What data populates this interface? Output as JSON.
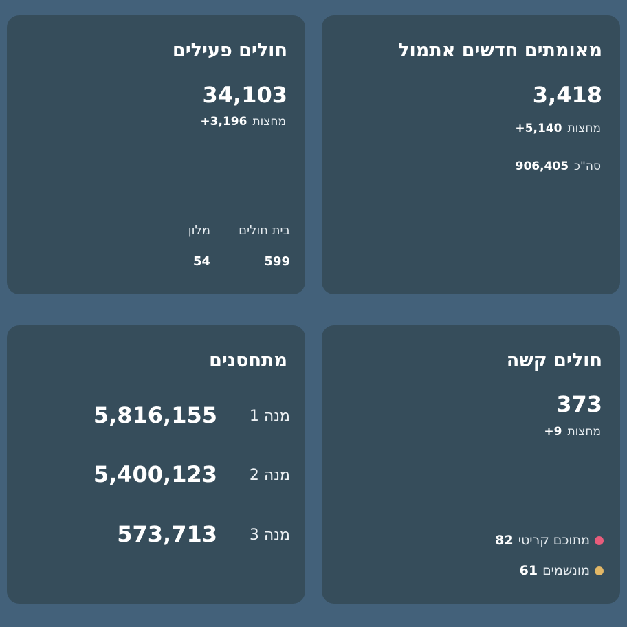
{
  "colors": {
    "page_background": "#43617a",
    "card_background": "#364d5b",
    "critical_dot": "#e85c7b",
    "ventilated_dot": "#e2b766"
  },
  "confirmed": {
    "title": "מאומתים חדשים אתמול",
    "value": "3,418",
    "since_midnight_value": "+5,140",
    "since_midnight_label": "מחצות",
    "total_value": "906,405",
    "total_label": "סה\"כ"
  },
  "active": {
    "title": "חולים פעילים",
    "value": "34,103",
    "since_midnight_value": "+3,196",
    "since_midnight_label": "מחצות",
    "hospital_label": "בית חולים",
    "hospital_value": "599",
    "hotel_label": "מלון",
    "hotel_value": "54"
  },
  "severe": {
    "title": "חולים קשה",
    "value": "373",
    "since_midnight_value": "+9",
    "since_midnight_label": "מחצות",
    "critical_label": "מתוכם קריטי",
    "critical_value": "82",
    "critical_icon": "pink-dot-icon",
    "ventilated_label": "מונשמים",
    "ventilated_value": "61",
    "ventilated_icon": "yellow-dot-icon"
  },
  "vaccinated": {
    "title": "מתחסנים",
    "doses": [
      {
        "label": "מנה 1",
        "value": "5,816,155"
      },
      {
        "label": "מנה 2",
        "value": "5,400,123"
      },
      {
        "label": "מנה 3",
        "value": "573,713"
      }
    ]
  }
}
